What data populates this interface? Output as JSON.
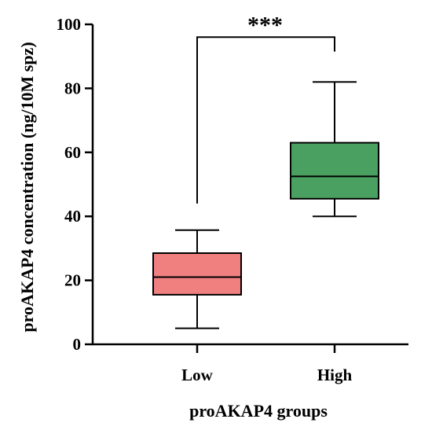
{
  "chart_data": {
    "type": "box",
    "xlabel": "proAKAP4 groups",
    "ylabel": "proAKAP4 concentration (ng/10M spz)",
    "ylim": [
      0,
      100
    ],
    "yticks": [
      0,
      20,
      40,
      60,
      80,
      100
    ],
    "grid": false,
    "categories": [
      "Low",
      "High"
    ],
    "boxes": [
      {
        "category": "Low",
        "min": 5,
        "q1": 15.5,
        "median": 21,
        "q3": 28.5,
        "max": 35.7,
        "color": "#f08080"
      },
      {
        "category": "High",
        "min": 40,
        "q1": 45.5,
        "median": 52.5,
        "q3": 63,
        "max": 82,
        "color": "#4aa060"
      }
    ],
    "significance": {
      "label": "***",
      "from": "Low",
      "to": "High",
      "y": 96
    }
  }
}
